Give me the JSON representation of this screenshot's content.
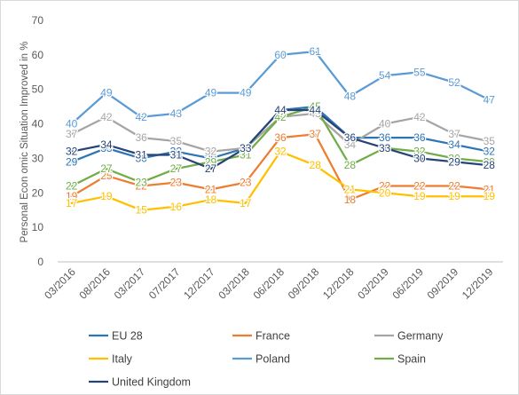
{
  "chart_data": {
    "type": "line",
    "title": "",
    "xlabel": "",
    "ylabel": "Personal Econ omic Situation Improved in %",
    "ylim": [
      0,
      70
    ],
    "yticks": [
      0,
      10,
      20,
      30,
      40,
      50,
      60,
      70
    ],
    "grid": false,
    "legend_position": "bottom",
    "categories": [
      "03/2016",
      "08/2016",
      "03/2017",
      "07/2017",
      "12/2017",
      "03/2018",
      "06/2018",
      "09/2018",
      "12/2018",
      "03/2019",
      "06/2019",
      "09/2019",
      "12/2019"
    ],
    "series": [
      {
        "name": "EU 28",
        "color": "#2e75b6",
        "values": [
          29,
          33,
          30,
          32,
          30,
          33,
          44,
          45,
          36,
          36,
          36,
          34,
          32
        ]
      },
      {
        "name": "France",
        "color": "#ed7d31",
        "values": [
          19,
          25,
          22,
          23,
          21,
          23,
          36,
          37,
          18,
          22,
          22,
          22,
          21
        ]
      },
      {
        "name": "Germany",
        "color": "#a5a5a5",
        "values": [
          37,
          42,
          36,
          35,
          32,
          33,
          42,
          43,
          34,
          40,
          42,
          37,
          35
        ]
      },
      {
        "name": "Italy",
        "color": "#ffc000",
        "values": [
          17,
          19,
          15,
          16,
          18,
          17,
          32,
          28,
          21,
          20,
          19,
          19,
          19
        ]
      },
      {
        "name": "Poland",
        "color": "#5b9bd5",
        "values": [
          40,
          49,
          42,
          43,
          49,
          49,
          60,
          61,
          48,
          54,
          55,
          52,
          47
        ]
      },
      {
        "name": "Spain",
        "color": "#70ad47",
        "values": [
          22,
          27,
          23,
          27,
          29,
          31,
          42,
          45,
          28,
          33,
          32,
          30,
          29
        ]
      },
      {
        "name": "United Kingdom",
        "color": "#264478",
        "values": [
          32,
          34,
          31,
          31,
          27,
          33,
          44,
          44,
          36,
          33,
          30,
          29,
          28
        ]
      }
    ]
  }
}
